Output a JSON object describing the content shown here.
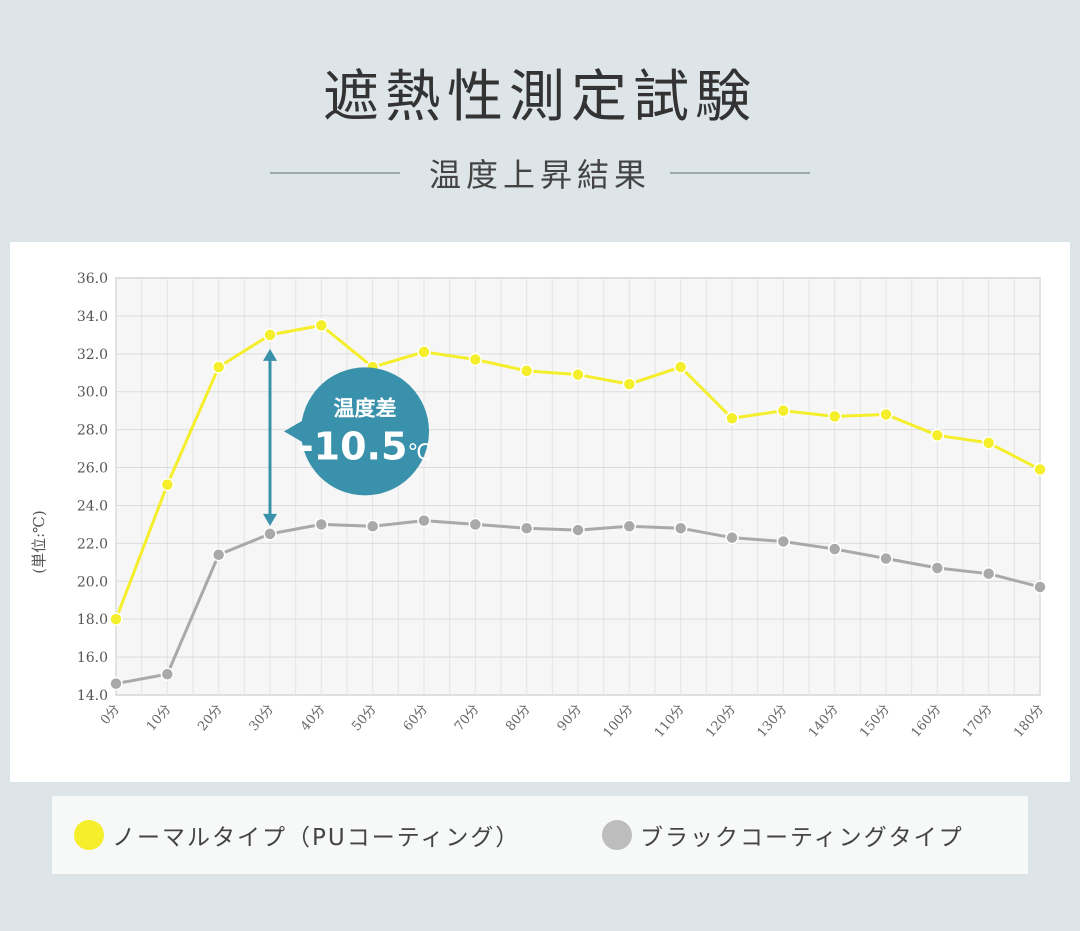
{
  "header": {
    "title": "遮熱性測定試験",
    "subtitle": "温度上昇結果"
  },
  "legend": {
    "items": [
      {
        "label": "ノーマルタイプ（PUコーティング）",
        "color": "#f5ee2b"
      },
      {
        "label": "ブラックコーティングタイプ",
        "color": "#bdbdbd"
      }
    ]
  },
  "callout": {
    "label": "温度差",
    "value": "-10.5",
    "unit": "℃",
    "color": "#3a91ab"
  },
  "chart_data": {
    "type": "line",
    "ylabel": "(単位:℃)",
    "ylim": [
      14,
      36
    ],
    "yticks": [
      "14.0",
      "16.0",
      "18.0",
      "20.0",
      "22.0",
      "24.0",
      "26.0",
      "28.0",
      "30.0",
      "32.0",
      "34.0",
      "36.0"
    ],
    "categories": [
      "0分",
      "10分",
      "20分",
      "30分",
      "40分",
      "50分",
      "60分",
      "70分",
      "80分",
      "90分",
      "100分",
      "110分",
      "120分",
      "130分",
      "140分",
      "150分",
      "160分",
      "170分",
      "180分"
    ],
    "grid": true,
    "series": [
      {
        "name": "ノーマルタイプ（PUコーティング）",
        "color": "#f5ee2b",
        "values": [
          18.0,
          25.1,
          31.3,
          33.0,
          33.5,
          31.3,
          32.1,
          31.7,
          31.1,
          30.9,
          30.4,
          31.3,
          28.6,
          29.0,
          28.7,
          28.8,
          27.7,
          27.3,
          25.9
        ]
      },
      {
        "name": "ブラックコーティングタイプ",
        "color": "#a9a9a9",
        "values": [
          14.6,
          15.1,
          21.4,
          22.5,
          23.0,
          22.9,
          23.2,
          23.0,
          22.8,
          22.7,
          22.9,
          22.8,
          22.3,
          22.1,
          21.7,
          21.2,
          20.7,
          20.4,
          19.7
        ]
      }
    ]
  }
}
